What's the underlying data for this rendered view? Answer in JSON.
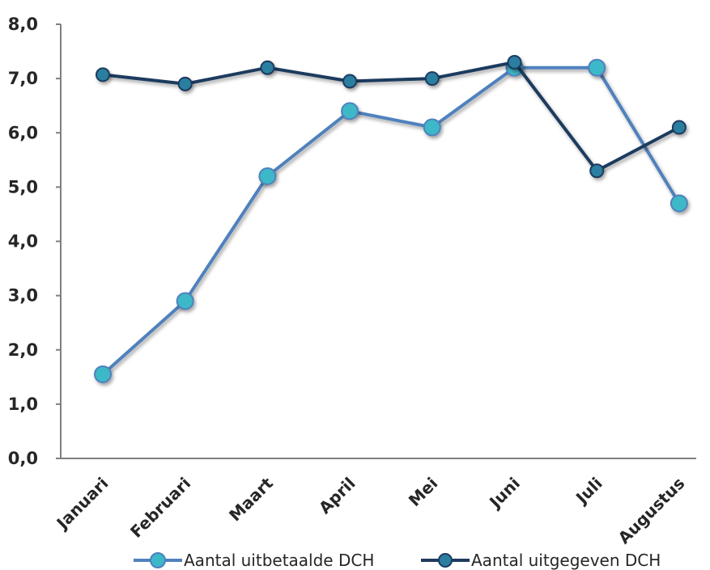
{
  "chart_data": {
    "type": "line",
    "categories": [
      "Januari",
      "Februari",
      "Maart",
      "April",
      "Mei",
      "Juni",
      "Juli",
      "Augustus"
    ],
    "series": [
      {
        "name": "Aantal uitbetaalde DCH",
        "values": [
          1.55,
          2.9,
          5.2,
          6.4,
          6.1,
          7.2,
          7.2,
          4.7
        ],
        "line_color": "#4F81BD",
        "marker_color": "#3CB8C8"
      },
      {
        "name": "Aantal uitgegeven DCH",
        "values": [
          7.07,
          6.9,
          7.2,
          6.95,
          7.0,
          7.3,
          5.3,
          6.1
        ],
        "line_color": "#1F3A5F",
        "marker_color": "#2A7FA0"
      }
    ],
    "y_ticks": [
      "0,0",
      "1,0",
      "2,0",
      "3,0",
      "4,0",
      "5,0",
      "6,0",
      "7,0",
      "8,0"
    ],
    "ylim": [
      0,
      8
    ],
    "title": "",
    "xlabel": "",
    "ylabel": "",
    "grid": false,
    "legend_position": "bottom"
  }
}
